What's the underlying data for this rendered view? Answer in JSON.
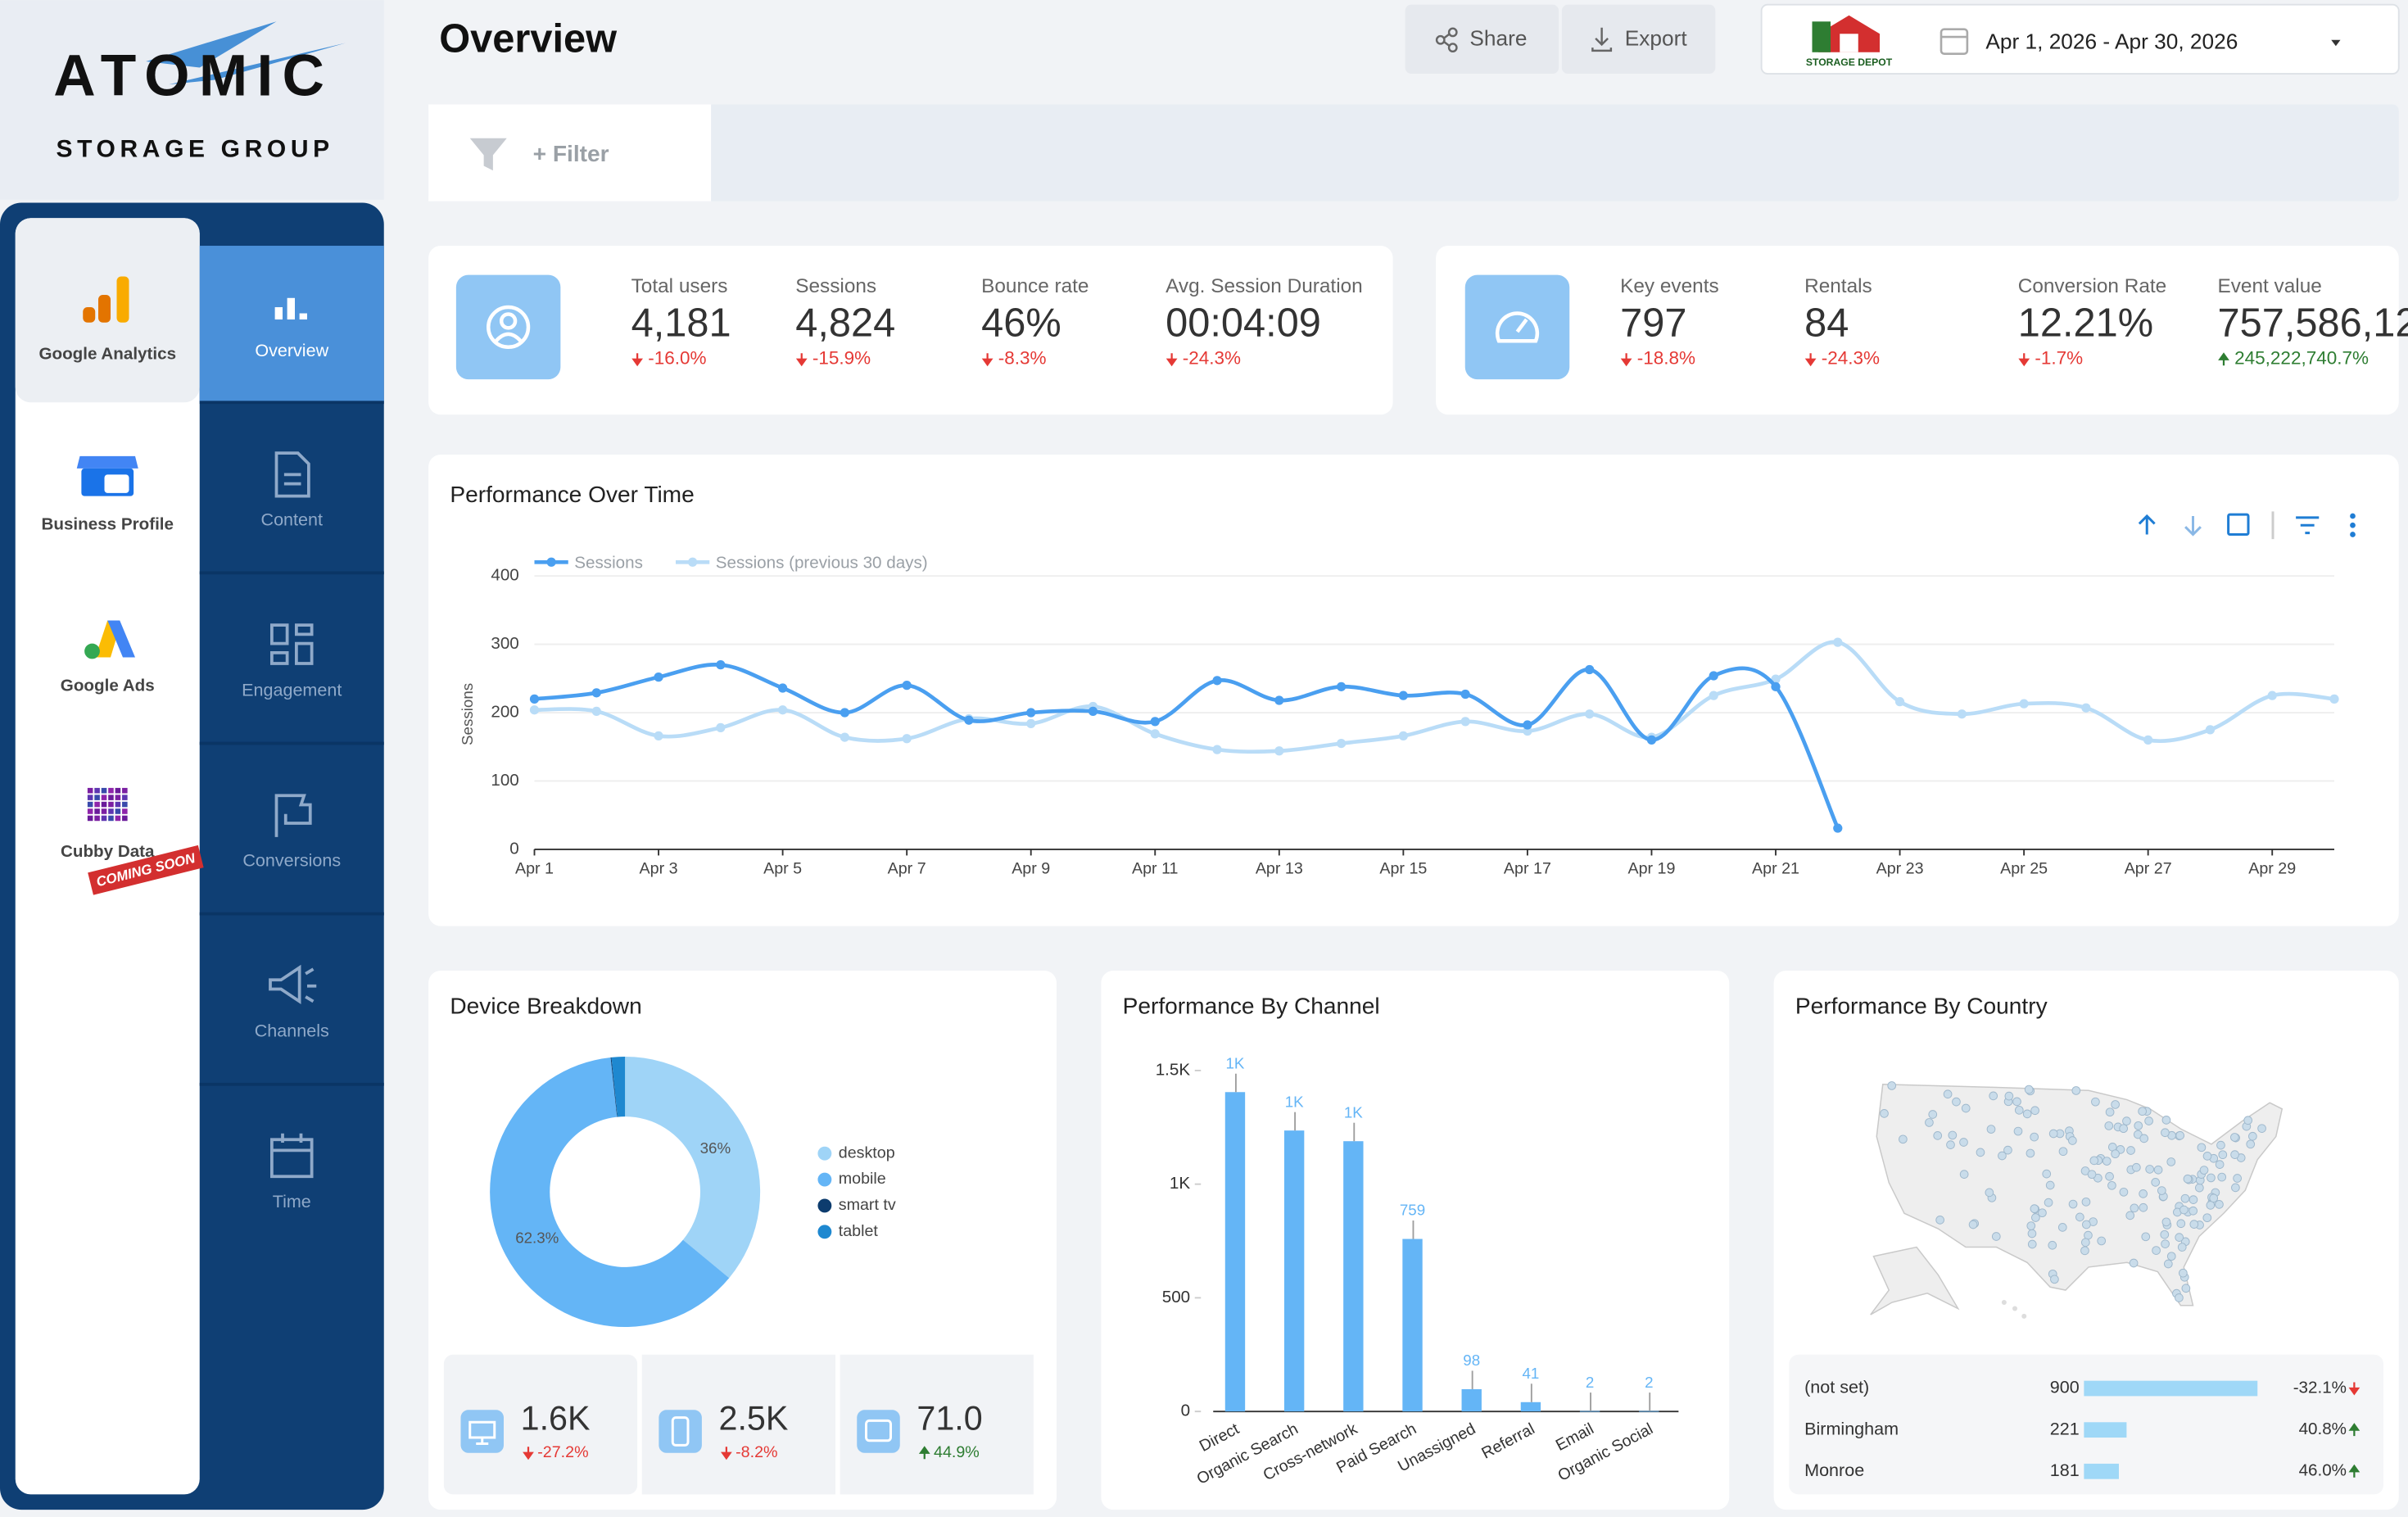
{
  "brand": {
    "name": "ATOMIC",
    "tagline": "STORAGE GROUP"
  },
  "sidebar": {
    "sources": [
      {
        "label": "Google Analytics"
      },
      {
        "label": "Business Profile"
      },
      {
        "label": "Google Ads"
      },
      {
        "label": "Cubby Data",
        "badge": "COMING SOON"
      }
    ],
    "pages": [
      "Overview",
      "Content",
      "Engagement",
      "Conversions",
      "Channels",
      "Time"
    ]
  },
  "header": {
    "title": "Overview",
    "share": "Share",
    "export": "Export",
    "client_logo": "STORAGE DEPOT",
    "date_range": "Apr 1, 2026 - Apr 30, 2026"
  },
  "filter": "+ Filter",
  "kpi_groups": [
    [
      {
        "label": "Total users",
        "value": "4,181",
        "change": "-16.0%",
        "trend": "down"
      },
      {
        "label": "Sessions",
        "value": "4,824",
        "change": "-15.9%",
        "trend": "down"
      },
      {
        "label": "Bounce rate",
        "value": "46%",
        "change": "-8.3%",
        "trend": "down"
      },
      {
        "label": "Avg. Session Duration",
        "value": "00:04:09",
        "change": "-24.3%",
        "trend": "down"
      }
    ],
    [
      {
        "label": "Key events",
        "value": "797",
        "change": "-18.8%",
        "trend": "down"
      },
      {
        "label": "Rentals",
        "value": "84",
        "change": "-24.3%",
        "trend": "down"
      },
      {
        "label": "Conversion Rate",
        "value": "12.21%",
        "change": "-1.7%",
        "trend": "down"
      },
      {
        "label": "Event value",
        "value": "757,586,12",
        "change": "245,222,740.7%",
        "trend": "up"
      }
    ]
  ],
  "performance_over_time": {
    "type": "line",
    "title": "Performance Over Time",
    "y_label": "Sessions",
    "categories": [
      "Apr 1",
      null,
      "Apr 3",
      null,
      "Apr 5",
      null,
      "Apr 7",
      null,
      "Apr 9",
      null,
      "Apr 11",
      null,
      "Apr 13",
      null,
      "Apr 15",
      null,
      "Apr 17",
      null,
      "Apr 19",
      null,
      "Apr 21",
      null,
      "Apr 23",
      null,
      "Apr 25",
      null,
      "Apr 27",
      null,
      "Apr 29",
      null
    ],
    "series": [
      {
        "name": "Sessions",
        "color": "#4a9ff0",
        "values": [
          220,
          229,
          252,
          270,
          236,
          200,
          240,
          189,
          200,
          202,
          187,
          247,
          218,
          238,
          225,
          227,
          182,
          263,
          160,
          254,
          238,
          31,
          null,
          null,
          null,
          null,
          null,
          null,
          null,
          null
        ]
      },
      {
        "name": "Sessions (previous 30 days)",
        "color": "#b9dcf7",
        "values": [
          204,
          202,
          166,
          178,
          204,
          164,
          162,
          191,
          184,
          209,
          169,
          146,
          144,
          155,
          166,
          187,
          173,
          198,
          164,
          225,
          249,
          303,
          216,
          198,
          213,
          207,
          160,
          175,
          225,
          220
        ]
      }
    ],
    "ylim": [
      0,
      400
    ],
    "yticks": [
      0,
      100,
      200,
      300,
      400
    ],
    "grid": true
  },
  "device_breakdown": {
    "type": "donut",
    "title": "Device Breakdown",
    "categories": [
      "desktop",
      "mobile",
      "smart tv",
      "tablet"
    ],
    "values": [
      36,
      62.3,
      0.1,
      1.6
    ],
    "value_labels": [
      "36%",
      "62.3%",
      null,
      null
    ],
    "colors": [
      "#9fd4f7",
      "#64b5f6",
      "#0d3c6e",
      "#1e88d0"
    ]
  },
  "device_stats": [
    {
      "value": "1.6K",
      "change": "-27.2%",
      "trend": "down"
    },
    {
      "value": "2.5K",
      "change": "-8.2%",
      "trend": "down"
    },
    {
      "value": "71.0",
      "change": "44.9%",
      "trend": "up"
    }
  ],
  "performance_by_channel": {
    "type": "bar",
    "title": "Performance By Channel",
    "categories": [
      "Direct",
      "Organic Search",
      "Cross-network",
      "Paid Search",
      "Unassigned",
      "Referral",
      "Email",
      "Organic Social"
    ],
    "values": [
      1405,
      1236,
      1189,
      759,
      98,
      41,
      2,
      2
    ],
    "value_labels": [
      "1K",
      "1K",
      "1K",
      "759",
      "98",
      "41",
      "2",
      "2"
    ],
    "color": "#64b5f6",
    "ylim": [
      0,
      1500
    ],
    "yticks": [
      0,
      500,
      {
        "value": 1000,
        "label": "1K"
      },
      {
        "value": 1500,
        "label": "1.5K"
      }
    ]
  },
  "performance_by_country": {
    "title": "Performance By Country",
    "rows": [
      {
        "name": "(not set)",
        "value": 900,
        "change": "-32.1%",
        "trend": "down"
      },
      {
        "name": "Birmingham",
        "value": 221,
        "change": "40.8%",
        "trend": "up"
      },
      {
        "name": "Monroe",
        "value": 181,
        "change": "46.0%",
        "trend": "up"
      }
    ]
  }
}
